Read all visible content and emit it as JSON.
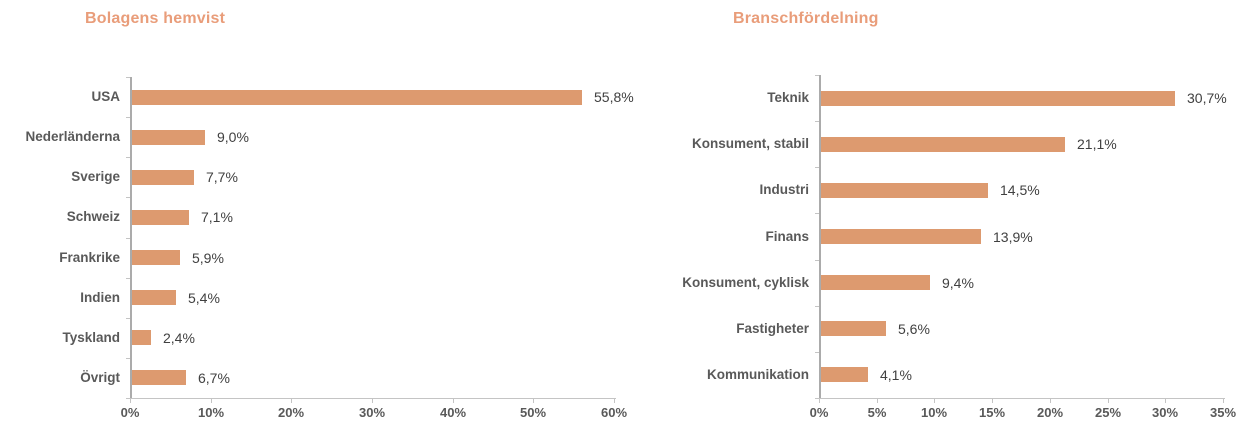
{
  "colors": {
    "bar": "#DD9A6F",
    "title": "#E99D7A",
    "category_label": "#595959",
    "value_label": "#404040",
    "tick_label": "#595959",
    "axis_line_y": "#ABABAB",
    "axis_line_x": "#C4C4C4",
    "tick_line": "#C4C4C4"
  },
  "chart_data": [
    {
      "type": "bar",
      "orientation": "horizontal",
      "title": "Bolagens hemvist",
      "categories": [
        "USA",
        "Nederländerna",
        "Sverige",
        "Schweiz",
        "Frankrike",
        "Indien",
        "Tyskland",
        "Övrigt"
      ],
      "values": [
        55.8,
        9.0,
        7.7,
        7.1,
        5.9,
        5.4,
        2.4,
        6.7
      ],
      "value_labels": [
        "55,8%",
        "9,0%",
        "7,7%",
        "7,1%",
        "5,9%",
        "5,4%",
        "2,4%",
        "6,7%"
      ],
      "xlabel": "",
      "ylabel": "",
      "xlim": [
        0,
        60
      ],
      "x_ticks": [
        {
          "value": 0,
          "label": "0%"
        },
        {
          "value": 10,
          "label": "10%"
        },
        {
          "value": 20,
          "label": "20%"
        },
        {
          "value": 30,
          "label": "30%"
        },
        {
          "value": 40,
          "label": "40%"
        },
        {
          "value": 50,
          "label": "50%"
        },
        {
          "value": 60,
          "label": "60%"
        }
      ],
      "grid": false,
      "legend": false
    },
    {
      "type": "bar",
      "orientation": "horizontal",
      "title": "Branschfördelning",
      "categories": [
        "Teknik",
        "Konsument, stabil",
        "Industri",
        "Finans",
        "Konsument, cyklisk",
        "Fastigheter",
        "Kommunikation"
      ],
      "values": [
        30.7,
        21.1,
        14.5,
        13.9,
        9.4,
        5.6,
        4.1
      ],
      "value_labels": [
        "30,7%",
        "21,1%",
        "14,5%",
        "13,9%",
        "9,4%",
        "5,6%",
        "4,1%"
      ],
      "xlabel": "",
      "ylabel": "",
      "xlim": [
        0,
        35
      ],
      "x_ticks": [
        {
          "value": 0,
          "label": "0%"
        },
        {
          "value": 5,
          "label": "5%"
        },
        {
          "value": 10,
          "label": "10%"
        },
        {
          "value": 15,
          "label": "15%"
        },
        {
          "value": 20,
          "label": "20%"
        },
        {
          "value": 25,
          "label": "25%"
        },
        {
          "value": 30,
          "label": "30%"
        },
        {
          "value": 35,
          "label": "35%"
        }
      ],
      "grid": false,
      "legend": false
    }
  ]
}
